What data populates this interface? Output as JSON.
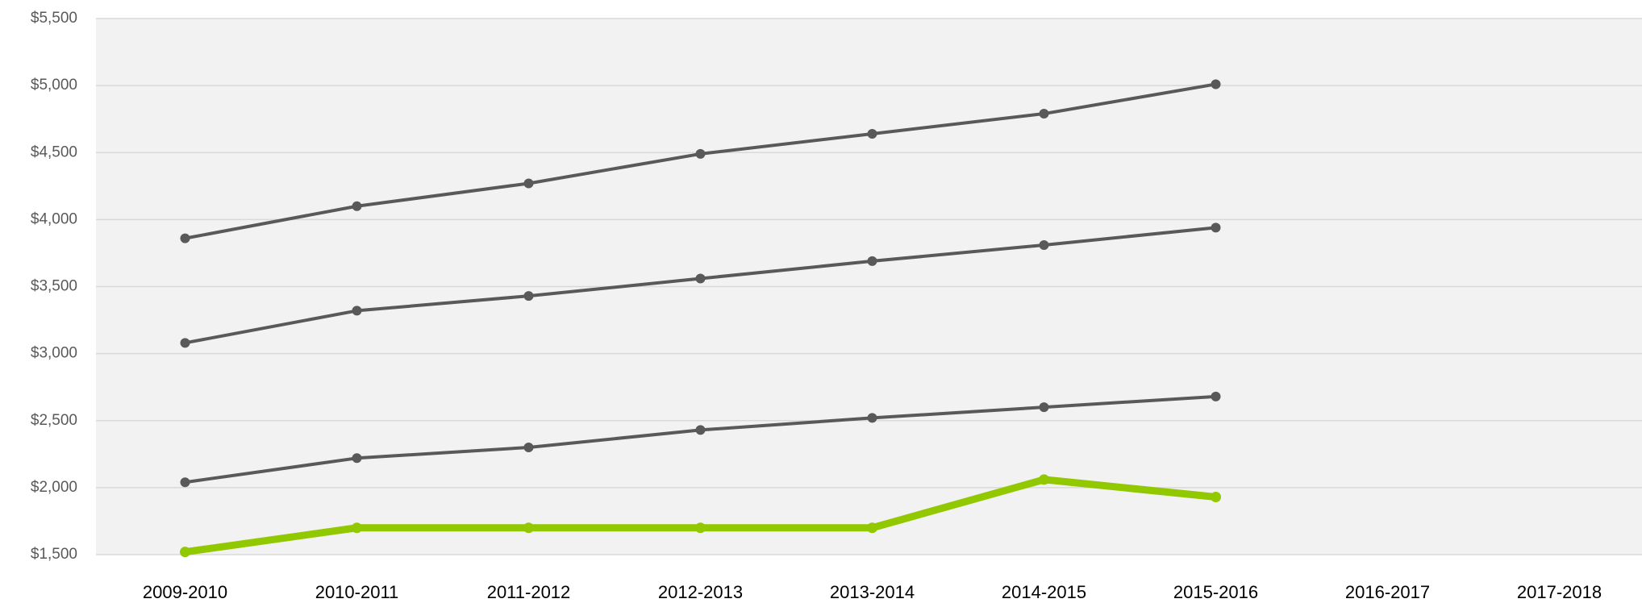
{
  "chart_data": {
    "type": "line",
    "categories": [
      "2009-2010",
      "2010-2011",
      "2011-2012",
      "2012-2013",
      "2013-2014",
      "2014-2015",
      "2015-2016",
      "2016-2017",
      "2017-2018"
    ],
    "series": [
      {
        "color": "#595959",
        "values": [
          3860,
          4100,
          4270,
          4490,
          4640,
          4790,
          5010,
          null,
          null
        ]
      },
      {
        "color": "#595959",
        "values": [
          3080,
          3320,
          3430,
          3560,
          3690,
          3810,
          3940,
          null,
          null
        ]
      },
      {
        "color": "#595959",
        "values": [
          2040,
          2220,
          2300,
          2430,
          2520,
          2600,
          2680,
          null,
          null
        ]
      },
      {
        "color": "#92c800",
        "values": [
          1520,
          1700,
          1700,
          1700,
          1700,
          2060,
          1930,
          null,
          null
        ]
      }
    ],
    "ylim": [
      1500,
      5500
    ],
    "yticks": [
      {
        "value": 1500,
        "label": "$1,500"
      },
      {
        "value": 2000,
        "label": "$2,000"
      },
      {
        "value": 2500,
        "label": "$2,500"
      },
      {
        "value": 3000,
        "label": "$3,000"
      },
      {
        "value": 3500,
        "label": "$3,500"
      },
      {
        "value": 4000,
        "label": "$4,000"
      },
      {
        "value": 4500,
        "label": "$4,500"
      },
      {
        "value": 5000,
        "label": "$5,000"
      },
      {
        "value": 5500,
        "label": "$5,500"
      }
    ],
    "grid": true
  }
}
